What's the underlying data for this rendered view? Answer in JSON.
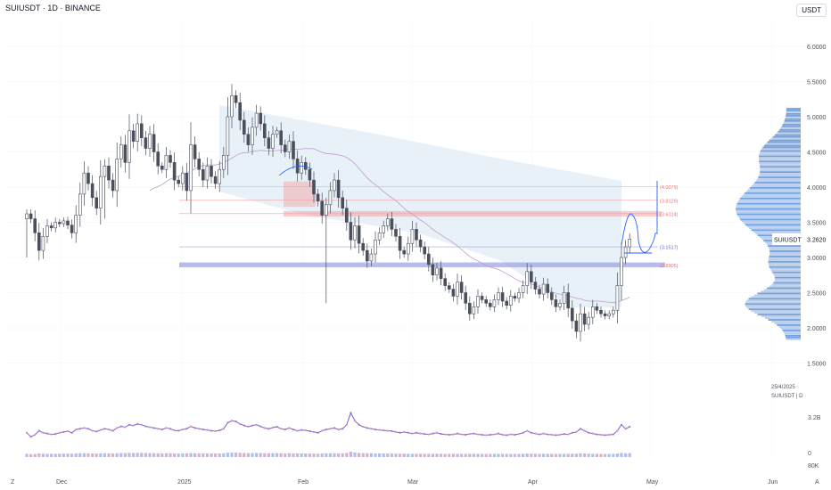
{
  "header": {
    "title": "SUIUSDT · 1D · BINANCE",
    "currency": "USDT"
  },
  "price_axis": {
    "labels": [
      "6.0000",
      "5.5000",
      "5.0000",
      "4.5000",
      "4.0000",
      "3.5000",
      "3.0000",
      "2.5000",
      "2.0000",
      "1.5000"
    ]
  },
  "volume_axis": {
    "labels": [
      "3.2B",
      "0",
      "80K"
    ]
  },
  "time_axis": {
    "labels": [
      "Dec",
      "2025",
      "Feb",
      "Mar",
      "Apr",
      "May",
      "Jun"
    ]
  },
  "last_price": {
    "symbol": "SUIUSDT",
    "value": "3.2620"
  },
  "info": {
    "date": "25/4/2025",
    "symbol_line": "SUIUSDT | D"
  },
  "corner": {
    "left": "Z",
    "right": "A"
  },
  "colors": {
    "up": "#26a69a",
    "down": "#ef5350",
    "candle": "#4a4f5c",
    "zone": "#f4a6a6",
    "zone_blue": "#9aa3e8",
    "cloud": "#e6eef7",
    "ma": "#c39bd3",
    "path": "#2962ff"
  },
  "chart_data": {
    "type": "candlestick",
    "symbol": "SUIUSDT",
    "interval": "1D",
    "exchange": "BINANCE",
    "ylim": [
      1.5,
      6.0
    ],
    "levels": [
      {
        "label": "(4.0079)",
        "value": 4.0079
      },
      {
        "label": "(3.8129)",
        "value": 3.8129
      },
      {
        "label": "(3.6224)",
        "value": 3.6224
      },
      {
        "label": "(3.1517)",
        "value": 3.1517
      },
      {
        "label": "(2.8905)",
        "value": 2.8905
      }
    ],
    "close": [
      3.62,
      3.55,
      3.35,
      3.1,
      3.3,
      3.45,
      3.42,
      3.5,
      3.48,
      3.52,
      3.46,
      3.35,
      3.6,
      3.9,
      4.2,
      4.05,
      3.85,
      3.7,
      4.15,
      4.3,
      4.1,
      3.95,
      4.4,
      4.6,
      4.35,
      4.8,
      4.65,
      4.9,
      4.7,
      4.55,
      4.75,
      4.5,
      4.3,
      4.25,
      4.45,
      4.35,
      4.1,
      4.05,
      4.2,
      3.95,
      4.6,
      4.4,
      4.25,
      4.1,
      4.3,
      4.15,
      4.05,
      4.25,
      4.45,
      5.0,
      5.3,
      5.2,
      4.95,
      4.75,
      4.6,
      4.85,
      5.05,
      4.9,
      4.7,
      4.55,
      4.75,
      4.8,
      4.6,
      4.5,
      4.65,
      4.4,
      4.2,
      4.35,
      4.25,
      4.1,
      3.9,
      3.8,
      3.6,
      3.75,
      3.95,
      4.1,
      3.85,
      3.7,
      3.5,
      3.25,
      3.45,
      3.2,
      3.1,
      2.95,
      3.05,
      3.25,
      3.35,
      3.45,
      3.55,
      3.4,
      3.3,
      3.1,
      3.05,
      3.2,
      3.4,
      3.25,
      3.15,
      3.05,
      2.9,
      2.75,
      2.85,
      2.7,
      2.6,
      2.55,
      2.45,
      2.65,
      2.5,
      2.35,
      2.2,
      2.3,
      2.45,
      2.4,
      2.35,
      2.3,
      2.4,
      2.5,
      2.38,
      2.32,
      2.45,
      2.42,
      2.5,
      2.6,
      2.8,
      2.65,
      2.55,
      2.48,
      2.62,
      2.5,
      2.4,
      2.3,
      2.35,
      2.5,
      2.28,
      2.1,
      1.95,
      2.2,
      2.05,
      2.15,
      2.3,
      2.25,
      2.2,
      2.17,
      2.2,
      2.25,
      2.6,
      3.0,
      3.15,
      3.262
    ],
    "series": [
      {
        "name": "Volume",
        "type": "bar",
        "values": [
          0.5,
          0.4,
          0.45,
          0.55,
          0.5,
          0.48,
          0.46,
          0.47,
          0.5,
          0.52,
          0.54,
          0.5,
          0.58,
          0.6,
          0.62,
          0.6,
          0.55,
          0.53,
          0.57,
          0.6,
          0.58,
          0.55,
          0.62,
          0.66,
          0.64,
          0.7,
          0.68,
          0.72,
          0.7,
          0.66,
          0.64,
          0.62,
          0.6,
          0.58,
          0.62,
          0.6,
          0.56,
          0.55,
          0.58,
          0.6,
          0.66,
          0.62,
          0.6,
          0.58,
          0.57,
          0.55,
          0.54,
          0.56,
          0.6,
          0.75,
          0.8,
          0.78,
          0.72,
          0.68,
          0.65,
          0.68,
          0.7,
          0.66,
          0.62,
          0.6,
          0.63,
          0.65,
          0.6,
          0.58,
          0.62,
          0.58,
          0.55,
          0.57,
          0.56,
          0.54,
          0.52,
          0.5,
          0.55,
          0.58,
          0.6,
          0.62,
          0.58,
          0.6,
          0.7,
          1.0,
          0.8,
          0.7,
          0.65,
          0.62,
          0.6,
          0.58,
          0.57,
          0.56,
          0.55,
          0.54,
          0.52,
          0.5,
          0.52,
          0.5,
          0.48,
          0.5,
          0.48,
          0.47,
          0.46,
          0.48,
          0.5,
          0.47,
          0.46,
          0.45,
          0.46,
          0.48,
          0.46,
          0.45,
          0.47,
          0.48,
          0.46,
          0.45,
          0.44,
          0.45,
          0.46,
          0.48,
          0.45,
          0.44,
          0.46,
          0.45,
          0.47,
          0.5,
          0.55,
          0.5,
          0.48,
          0.46,
          0.48,
          0.46,
          0.45,
          0.44,
          0.45,
          0.47,
          0.46,
          0.5,
          0.52,
          0.6,
          0.55,
          0.5,
          0.48,
          0.46,
          0.45,
          0.44,
          0.45,
          0.46,
          0.55,
          0.7,
          0.6,
          0.65
        ]
      }
    ]
  }
}
